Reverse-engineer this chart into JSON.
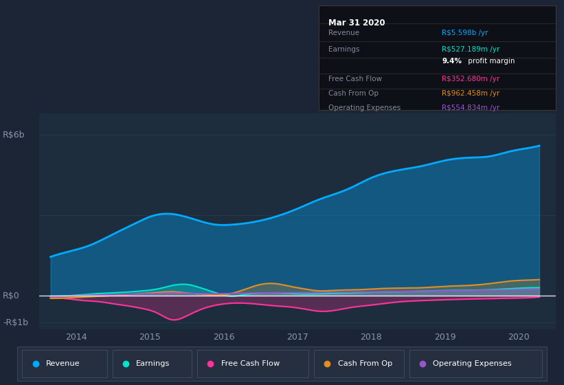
{
  "bg_color": "#1c2535",
  "chart_bg": "#1e2d3e",
  "outer_bg": "#232f40",
  "ylim": [
    -1250000000.0,
    6800000000.0
  ],
  "xlim": [
    2013.5,
    2020.5
  ],
  "xticks": [
    2014,
    2015,
    2016,
    2017,
    2018,
    2019,
    2020
  ],
  "revenue_color": "#00aaff",
  "earnings_color": "#00e5c8",
  "fcf_color": "#ff3399",
  "cashop_color": "#e09020",
  "opex_color": "#9955cc",
  "zero_line_color": "#ffffff",
  "grid_color": "#2a3a4e",
  "tick_color": "#8899aa",
  "legend_bg": "#252f40",
  "legend_border": "#3a4a5a",
  "info_bg": "#0d1117",
  "info_border": "#3a3a3a",
  "legend": [
    {
      "label": "Revenue",
      "color": "#00aaff"
    },
    {
      "label": "Earnings",
      "color": "#00e5c8"
    },
    {
      "label": "Free Cash Flow",
      "color": "#ff3399"
    },
    {
      "label": "Cash From Op",
      "color": "#e09020"
    },
    {
      "label": "Operating Expenses",
      "color": "#9955cc"
    }
  ]
}
